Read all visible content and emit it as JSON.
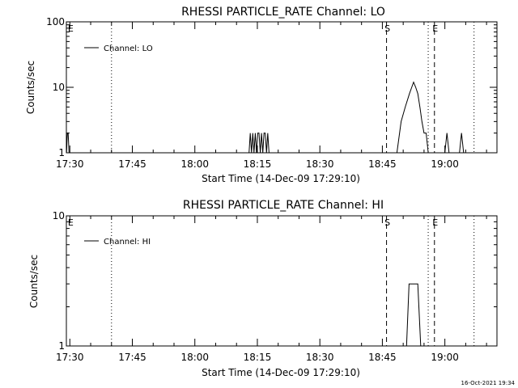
{
  "footer": {
    "timestamp": "16-Oct-2021 19:34"
  },
  "chart_data": [
    {
      "type": "line",
      "title": "RHESSI PARTICLE_RATE Channel: LO",
      "xlabel": "Start Time (14-Dec-09 17:29:10)",
      "ylabel": "Counts/sec",
      "y_scale": "log",
      "ylim": [
        1,
        100
      ],
      "y_ticks": [
        1,
        10,
        100
      ],
      "y_tick_labels": [
        "1",
        "10",
        "100"
      ],
      "x_ticks": [
        "17:30",
        "17:45",
        "18:00",
        "18:15",
        "18:30",
        "18:45",
        "19:00"
      ],
      "legend": {
        "position": "top-left",
        "entries": [
          "Channel: LO"
        ]
      },
      "markers": [
        {
          "time": "17:30",
          "label": "E",
          "style": "none"
        },
        {
          "time": "17:40",
          "label": "",
          "style": "dotted"
        },
        {
          "time": "18:46",
          "label": "S",
          "style": "dashed"
        },
        {
          "time": "18:56",
          "label": "",
          "style": "dotted"
        },
        {
          "time": "18:57.5",
          "label": "E",
          "style": "dashed"
        },
        {
          "time": "19:07",
          "label": "",
          "style": "dotted"
        }
      ],
      "series": [
        {
          "name": "Channel: LO",
          "x": [
            "17:29.2",
            "17:29.4",
            "17:29.6",
            "17:29.8",
            "17:30.0",
            "18:13.0",
            "18:13.3",
            "18:13.6",
            "18:13.9",
            "18:14.2",
            "18:14.5",
            "18:14.8",
            "18:15.1",
            "18:15.4",
            "18:15.7",
            "18:16.0",
            "18:16.3",
            "18:16.6",
            "18:16.9",
            "18:17.2",
            "18:17.5",
            "18:17.8",
            "18:18.1",
            "18:48.5",
            "18:49.5",
            "18:50.5",
            "18:51.5",
            "18:52.5",
            "18:53.0",
            "18:53.5",
            "18:54.0",
            "18:54.5",
            "18:55.0",
            "18:55.5",
            "18:56.0",
            "18:56.5",
            "18:57.0",
            "18:57.5",
            "19:00.0",
            "19:00.5",
            "19:01.0",
            "19:03.5",
            "19:04.0",
            "19:04.5"
          ],
          "y": [
            1,
            2,
            2,
            1,
            1,
            1,
            2,
            1,
            2,
            1,
            2,
            1,
            2,
            2,
            1,
            2,
            1,
            2,
            2,
            1,
            2,
            1,
            1,
            1,
            3,
            5,
            8,
            12,
            10,
            8,
            5,
            3,
            2,
            2,
            1,
            1,
            1,
            1,
            1,
            2,
            1,
            1,
            2,
            1
          ]
        }
      ]
    },
    {
      "type": "line",
      "title": "RHESSI PARTICLE_RATE Channel: HI",
      "xlabel": "Start Time (14-Dec-09 17:29:10)",
      "ylabel": "Counts/sec",
      "y_scale": "log",
      "ylim": [
        1,
        10
      ],
      "y_ticks": [
        1,
        10
      ],
      "y_tick_labels": [
        "1",
        "10"
      ],
      "x_ticks": [
        "17:30",
        "17:45",
        "18:00",
        "18:15",
        "18:30",
        "18:45",
        "19:00"
      ],
      "legend": {
        "position": "top-left",
        "entries": [
          "Channel: HI"
        ]
      },
      "markers": [
        {
          "time": "17:30",
          "label": "E",
          "style": "none"
        },
        {
          "time": "17:40",
          "label": "",
          "style": "dotted"
        },
        {
          "time": "18:46",
          "label": "S",
          "style": "dashed"
        },
        {
          "time": "18:56",
          "label": "",
          "style": "dotted"
        },
        {
          "time": "18:57.5",
          "label": "E",
          "style": "dashed"
        },
        {
          "time": "19:07",
          "label": "",
          "style": "dotted"
        }
      ],
      "series": [
        {
          "name": "Channel: HI",
          "x": [
            "18:50.8",
            "18:51.4",
            "18:51.6",
            "18:53.3",
            "18:53.5",
            "18:54.2"
          ],
          "y": [
            1,
            3,
            3,
            3,
            3,
            1
          ]
        }
      ]
    }
  ]
}
